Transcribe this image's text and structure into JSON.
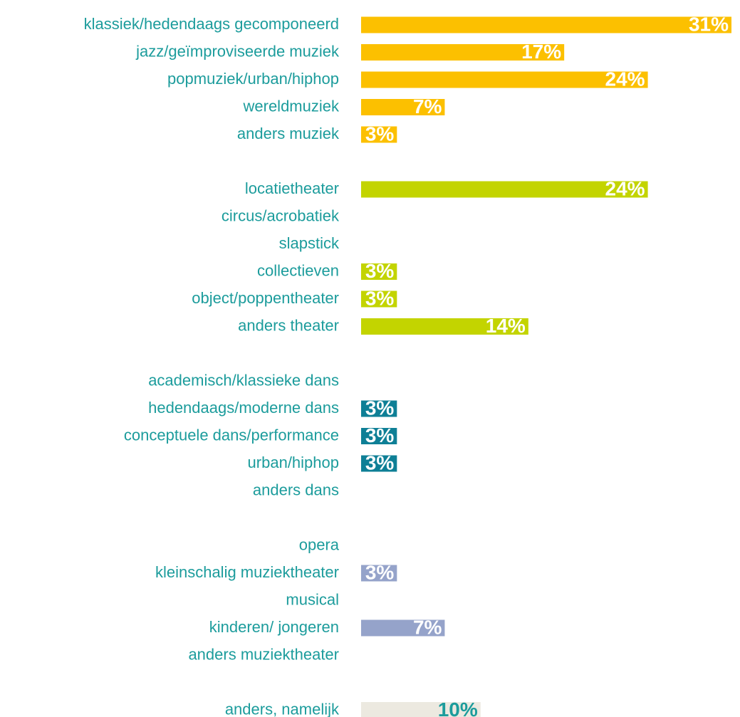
{
  "chart_data": {
    "type": "bar",
    "orientation": "horizontal",
    "categories": [
      "klassiek/hedendaags gecomponeerd",
      "jazz/geïmproviseerde muziek",
      "popmuziek/urban/hiphop",
      "wereldmuziek",
      "anders muziek",
      null,
      "locatietheater",
      "circus/acrobatiek",
      "slapstick",
      "collectieven",
      "object/poppentheater",
      "anders theater",
      null,
      "academisch/klassieke dans",
      "hedendaags/moderne dans",
      "conceptuele dans/performance",
      "urban/hiphop",
      "anders dans",
      null,
      "opera",
      "kleinschalig muziektheater",
      "musical",
      "kinderen/ jongeren",
      "anders muziektheater",
      null,
      "anders, namelijk"
    ],
    "values": [
      31,
      17,
      24,
      7,
      3,
      null,
      24,
      null,
      null,
      3,
      3,
      14,
      null,
      null,
      3,
      3,
      3,
      null,
      null,
      null,
      3,
      null,
      7,
      null,
      null,
      10
    ],
    "value_labels": [
      "31%",
      "17%",
      "24%",
      "7%",
      "3%",
      null,
      "24%",
      null,
      null,
      "3%",
      "3%",
      "14%",
      null,
      null,
      "3%",
      "3%",
      "3%",
      null,
      null,
      null,
      "3%",
      null,
      "7%",
      null,
      null,
      "10%"
    ],
    "colors": [
      "#fcc000",
      "#fcc000",
      "#fcc000",
      "#fcc000",
      "#fcc000",
      null,
      "#c3d400",
      "#c3d400",
      "#c3d400",
      "#c3d400",
      "#c3d400",
      "#c3d400",
      null,
      "#0e7f96",
      "#0e7f96",
      "#0e7f96",
      "#0e7f96",
      "#0e7f96",
      null,
      "#95a3ca",
      "#95a3ca",
      "#95a3ca",
      "#95a3ca",
      "#95a3ca",
      null,
      "#ece9e0"
    ]
  }
}
